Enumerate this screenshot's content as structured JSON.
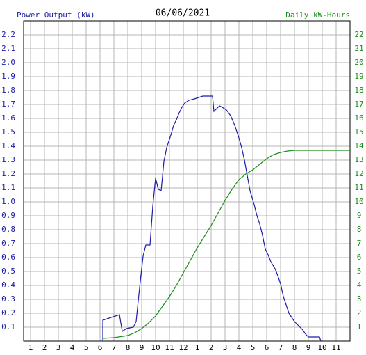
{
  "chart_data": {
    "type": "line",
    "title": "06/06/2021",
    "ylabel": "Power Output (kW)",
    "y2label": "Daily kW-Hours",
    "grid": true,
    "xlim": [
      0.5,
      24
    ],
    "xticks": [
      1,
      2,
      3,
      4,
      5,
      6,
      7,
      8,
      9,
      10,
      11,
      12,
      {
        "value": 13,
        "label": "1"
      },
      {
        "value": 14,
        "label": "2"
      },
      {
        "value": 15,
        "label": "3"
      },
      {
        "value": 16,
        "label": "4"
      },
      {
        "value": 17,
        "label": "5"
      },
      {
        "value": 18,
        "label": "6"
      },
      {
        "value": 19,
        "label": "7"
      },
      {
        "value": 20,
        "label": "8"
      },
      {
        "value": 21,
        "label": "9"
      },
      {
        "value": 22,
        "label": "10"
      },
      {
        "value": 23,
        "label": "11"
      }
    ],
    "ylim": [
      0,
      2.3
    ],
    "yticks": [
      0.1,
      0.2,
      0.3,
      0.4,
      0.5,
      0.6,
      0.7,
      0.8,
      0.9,
      {
        "value": 1,
        "label": "1.0"
      },
      1.1,
      1.2,
      1.3,
      1.4,
      1.5,
      1.6,
      1.7,
      1.8,
      1.9,
      {
        "value": 2,
        "label": "2.0"
      },
      2.1,
      2.2
    ],
    "y2lim": [
      0,
      23
    ],
    "y2ticks": [
      1,
      2,
      3,
      4,
      5,
      6,
      7,
      8,
      9,
      10,
      11,
      12,
      13,
      14,
      15,
      16,
      17,
      18,
      19,
      20,
      21,
      22
    ],
    "series": [
      {
        "name": "Power Output (kW)",
        "color": "#1c1ca8",
        "x": [
          6.2,
          6.2,
          6.8,
          7.1,
          7.4,
          7.6,
          7.9,
          8.4,
          8.6,
          8.7,
          8.9,
          9.1,
          9.3,
          9.6,
          9.8,
          10.0,
          10.2,
          10.4,
          10.6,
          10.8,
          11.1,
          11.3,
          11.5,
          11.7,
          11.9,
          12.1,
          12.4,
          12.8,
          13.1,
          13.4,
          13.8,
          14.1,
          14.2,
          14.6,
          14.8,
          15.1,
          15.4,
          15.7,
          16.0,
          16.2,
          16.4,
          16.6,
          16.8,
          17.1,
          17.3,
          17.5,
          17.7,
          17.9,
          18.1,
          18.3,
          18.6,
          18.8,
          19.0,
          19.2,
          19.4,
          19.6,
          19.8,
          20.0,
          20.3,
          20.6,
          20.8,
          21.0,
          21.8,
          21.9
        ],
        "values": [
          0,
          0.15,
          0.17,
          0.18,
          0.19,
          0.07,
          0.09,
          0.1,
          0.14,
          0.24,
          0.43,
          0.61,
          0.69,
          0.69,
          0.97,
          1.17,
          1.09,
          1.08,
          1.29,
          1.39,
          1.48,
          1.55,
          1.59,
          1.64,
          1.68,
          1.71,
          1.73,
          1.74,
          1.75,
          1.76,
          1.76,
          1.76,
          1.65,
          1.69,
          1.68,
          1.66,
          1.62,
          1.55,
          1.46,
          1.39,
          1.3,
          1.19,
          1.08,
          0.98,
          0.9,
          0.84,
          0.76,
          0.66,
          0.62,
          0.57,
          0.52,
          0.47,
          0.41,
          0.32,
          0.26,
          0.2,
          0.17,
          0.14,
          0.11,
          0.08,
          0.05,
          0.03,
          0.03,
          0
        ]
      },
      {
        "name": "Daily kW-Hours",
        "color": "#1c8c1c",
        "axis": "y2",
        "x": [
          6.2,
          7.0,
          8.0,
          8.5,
          9.0,
          9.5,
          10.0,
          10.5,
          11.0,
          11.5,
          12.0,
          12.5,
          13.0,
          13.5,
          14.0,
          14.5,
          15.0,
          15.5,
          16.0,
          16.5,
          17.0,
          17.5,
          18.0,
          18.5,
          19.0,
          19.5,
          20.0,
          24.0
        ],
        "values": [
          0.2,
          0.25,
          0.4,
          0.6,
          0.9,
          1.3,
          1.8,
          2.5,
          3.2,
          4.0,
          4.9,
          5.8,
          6.7,
          7.5,
          8.3,
          9.2,
          10.1,
          10.9,
          11.6,
          12.0,
          12.3,
          12.7,
          13.1,
          13.4,
          13.55,
          13.65,
          13.7,
          13.7
        ]
      }
    ]
  }
}
